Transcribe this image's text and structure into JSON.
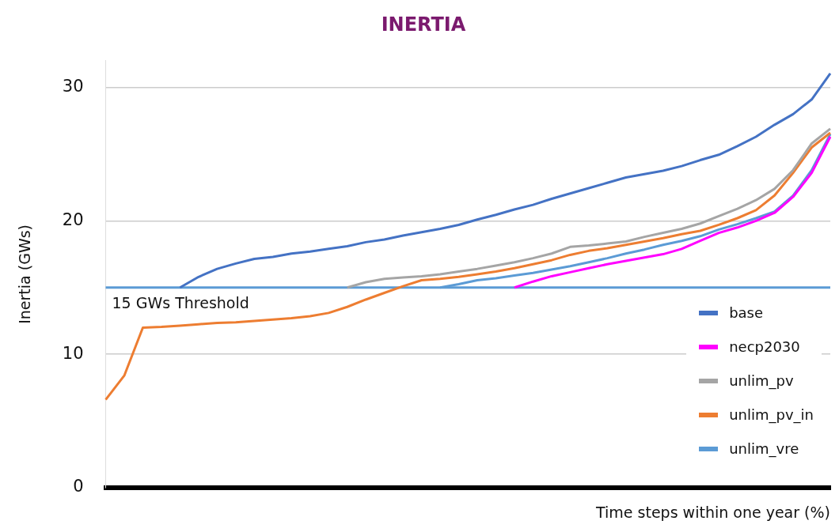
{
  "chart_data": {
    "type": "line",
    "title": "INERTIA",
    "xlabel": "Time steps within one year (%)",
    "ylabel": "Inertia (GWs)",
    "categories": [
      null,
      null,
      null,
      null,
      null,
      null,
      null,
      null,
      null,
      null,
      null,
      null,
      null,
      null,
      null,
      null,
      null,
      null,
      null,
      null,
      null,
      null,
      null,
      null,
      null,
      null,
      null,
      null,
      null,
      null,
      null,
      null,
      null,
      null,
      null,
      null,
      null,
      null,
      null,
      null
    ],
    "series": [
      {
        "name": "base",
        "color": "#4472c4",
        "values": [
          null,
          null,
          null,
          null,
          15,
          15.8,
          16.4,
          16.8,
          17.15,
          17.3,
          17.55,
          17.7,
          17.9,
          18.1,
          18.4,
          18.6,
          18.9,
          19.15,
          19.4,
          19.7,
          20.1,
          20.45,
          20.85,
          21.2,
          21.65,
          22.05,
          22.45,
          22.85,
          23.25,
          23.5,
          23.75,
          24.1,
          24.55,
          24.95,
          25.6,
          26.3,
          27.2,
          28.0,
          29.1,
          31.05
        ]
      },
      {
        "name": "necp2030",
        "color": "#ff00ff",
        "values": [
          null,
          null,
          null,
          null,
          null,
          null,
          null,
          null,
          null,
          null,
          null,
          null,
          null,
          null,
          null,
          null,
          null,
          null,
          null,
          null,
          null,
          null,
          15,
          15.45,
          15.85,
          16.15,
          16.45,
          16.75,
          17.0,
          17.25,
          17.5,
          17.9,
          18.5,
          19.1,
          19.5,
          20.0,
          20.6,
          21.8,
          23.6,
          26.3
        ]
      },
      {
        "name": "unlim_pv",
        "color": "#a5a5a5",
        "values": [
          null,
          null,
          null,
          null,
          null,
          null,
          null,
          null,
          null,
          null,
          null,
          null,
          null,
          15,
          15.4,
          15.65,
          15.75,
          15.85,
          16.0,
          16.2,
          16.4,
          16.65,
          16.9,
          17.2,
          17.55,
          18.05,
          18.15,
          18.3,
          18.45,
          18.8,
          19.1,
          19.4,
          19.8,
          20.35,
          20.9,
          21.55,
          22.4,
          23.8,
          25.8,
          26.9
        ]
      },
      {
        "name": "unlim_pv_in",
        "color": "#ed7d31",
        "values": [
          6.6,
          8.4,
          12.0,
          12.05,
          12.15,
          12.25,
          12.35,
          12.4,
          12.5,
          12.6,
          12.7,
          12.85,
          13.1,
          13.55,
          14.1,
          14.6,
          15.1,
          15.55,
          15.65,
          15.8,
          16.0,
          16.2,
          16.45,
          16.75,
          17.05,
          17.45,
          17.75,
          17.95,
          18.2,
          18.45,
          18.7,
          19.0,
          19.25,
          19.7,
          20.2,
          20.8,
          21.9,
          23.6,
          25.5,
          26.6
        ]
      },
      {
        "name": "unlim_vre",
        "color": "#5b9bd5",
        "values": [
          null,
          null,
          null,
          null,
          null,
          null,
          null,
          null,
          null,
          null,
          null,
          null,
          null,
          null,
          null,
          null,
          null,
          null,
          15,
          15.25,
          15.55,
          15.7,
          15.9,
          16.1,
          16.35,
          16.6,
          16.9,
          17.2,
          17.55,
          17.85,
          18.2,
          18.5,
          18.85,
          19.35,
          19.75,
          20.2,
          20.7,
          21.9,
          23.8,
          26.5
        ]
      }
    ],
    "ylim": [
      0,
      32
    ],
    "yticks": [
      0,
      10,
      20,
      30
    ],
    "grid": "y",
    "legend": "bottom right",
    "ref_lines": [
      {
        "axis": "y",
        "value": 15,
        "label": "15 GWs Threshold",
        "color": "#5b9bd5"
      }
    ]
  }
}
